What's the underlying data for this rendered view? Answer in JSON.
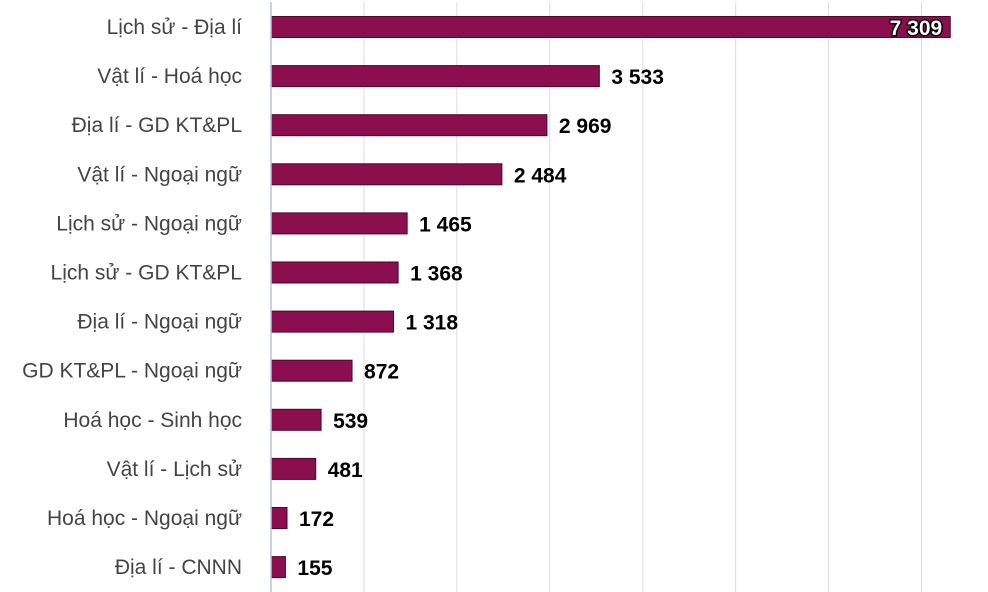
{
  "chart_data": {
    "type": "bar",
    "orientation": "horizontal",
    "categories": [
      "Lịch sử - Địa lí",
      "Vật lí - Hoá học",
      "Địa lí - GD KT&PL",
      "Vật lí - Ngoại ngữ",
      "Lịch sử - Ngoại ngữ",
      "Lịch sử - GD KT&PL",
      "Địa lí - Ngoại ngữ",
      "GD KT&PL - Ngoại ngữ",
      "Hoá học - Sinh học",
      "Vật lí - Lịch sử",
      "Hoá học - Ngoại ngữ",
      "Địa lí - CNNN"
    ],
    "values": [
      7309,
      3533,
      2969,
      2484,
      1465,
      1368,
      1318,
      872,
      539,
      481,
      172,
      155
    ],
    "value_labels": [
      "7 309",
      "3 533",
      "2 969",
      "2 484",
      "1 465",
      "1 368",
      "1 318",
      "872",
      "539",
      "481",
      "172",
      "155"
    ],
    "xlim": [
      0,
      7500
    ],
    "grid": true,
    "legend": "none",
    "bar_color": "#8b0f4e"
  }
}
